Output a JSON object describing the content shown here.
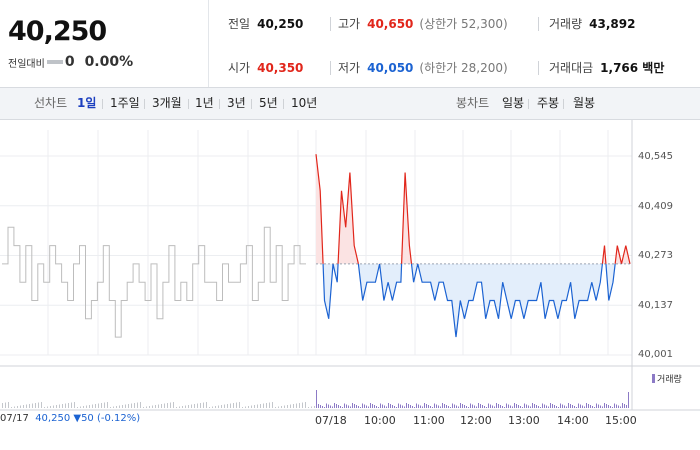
{
  "quote": {
    "price": "40,250",
    "change_label": "전일대비",
    "change_value": "0",
    "change_pct": "0.00%"
  },
  "stats": {
    "prev_close_label": "전일",
    "prev_close": "40,250",
    "high_label": "고가",
    "high": "40,650",
    "upper_limit": "(상한가 52,300)",
    "volume_label": "거래량",
    "volume": "43,892",
    "open_label": "시가",
    "open": "40,350",
    "low_label": "저가",
    "low": "40,050",
    "lower_limit": "(하한가 28,200)",
    "amount_label": "거래대금",
    "amount": "1,766 백만"
  },
  "tabs": {
    "line_label": "선차트",
    "periods": [
      "1일",
      "1주일",
      "3개월",
      "1년",
      "3년",
      "5년",
      "10년"
    ],
    "candle_label": "봉차트",
    "candles": [
      "일봉",
      "주봉",
      "월봉"
    ]
  },
  "colors": {
    "up": "#e1261b",
    "down": "#1c63d2",
    "prev_day": "#bdbdbd",
    "volume": "#8c7ac6"
  },
  "chart_data": {
    "type": "line",
    "y_ticks": [
      "40,545",
      "40,409",
      "40,273",
      "40,137",
      "40,001"
    ],
    "ylim": [
      40001,
      40545
    ],
    "baseline": 40250,
    "x_ticks": [
      "07/17",
      "07/18",
      "10:00",
      "11:00",
      "12:00",
      "13:00",
      "14:00",
      "15:00"
    ],
    "footer_date": "07/17",
    "footer_price": "40,250",
    "footer_change": "▼50",
    "footer_pct": "(-0.12%)",
    "volume_legend": "거래량",
    "series": [
      {
        "values": [
          40250,
          40350,
          40300,
          40200,
          40300,
          40150,
          40250,
          40200,
          40300,
          40250,
          40200,
          40150,
          40250,
          40300,
          40100,
          40150,
          40200,
          40300,
          40150,
          40050,
          40150,
          40200,
          40250,
          40200,
          40150,
          40250,
          40100,
          40200,
          40300,
          40150,
          40200,
          40150,
          40250,
          40300,
          40200,
          40200,
          40150,
          40250,
          40200,
          40200,
          40250,
          40300,
          40150,
          40200,
          40350,
          40200,
          40300,
          40150,
          40250,
          40300,
          40250,
          40250
        ]
      },
      {
        "values": [
          40550,
          40450,
          40150,
          40100,
          40250,
          40200,
          40450,
          40350,
          40500,
          40300,
          40250,
          40150,
          40200,
          40200,
          40200,
          40250,
          40150,
          40200,
          40150,
          40200,
          40200,
          40500,
          40300,
          40200,
          40250,
          40200,
          40200,
          40200,
          40150,
          40200,
          40200,
          40150,
          40150,
          40050,
          40150,
          40100,
          40150,
          40150,
          40200,
          40200,
          40100,
          40150,
          40150,
          40100,
          40200,
          40150,
          40100,
          40150,
          40150,
          40100,
          40150,
          40150,
          40150,
          40200,
          40100,
          40150,
          40150,
          40100,
          40150,
          40150,
          40200,
          40100,
          40150,
          40150,
          40150,
          40200,
          40150,
          40200,
          40300,
          40150,
          40200,
          40300,
          40250,
          40300,
          40250
        ]
      }
    ]
  }
}
